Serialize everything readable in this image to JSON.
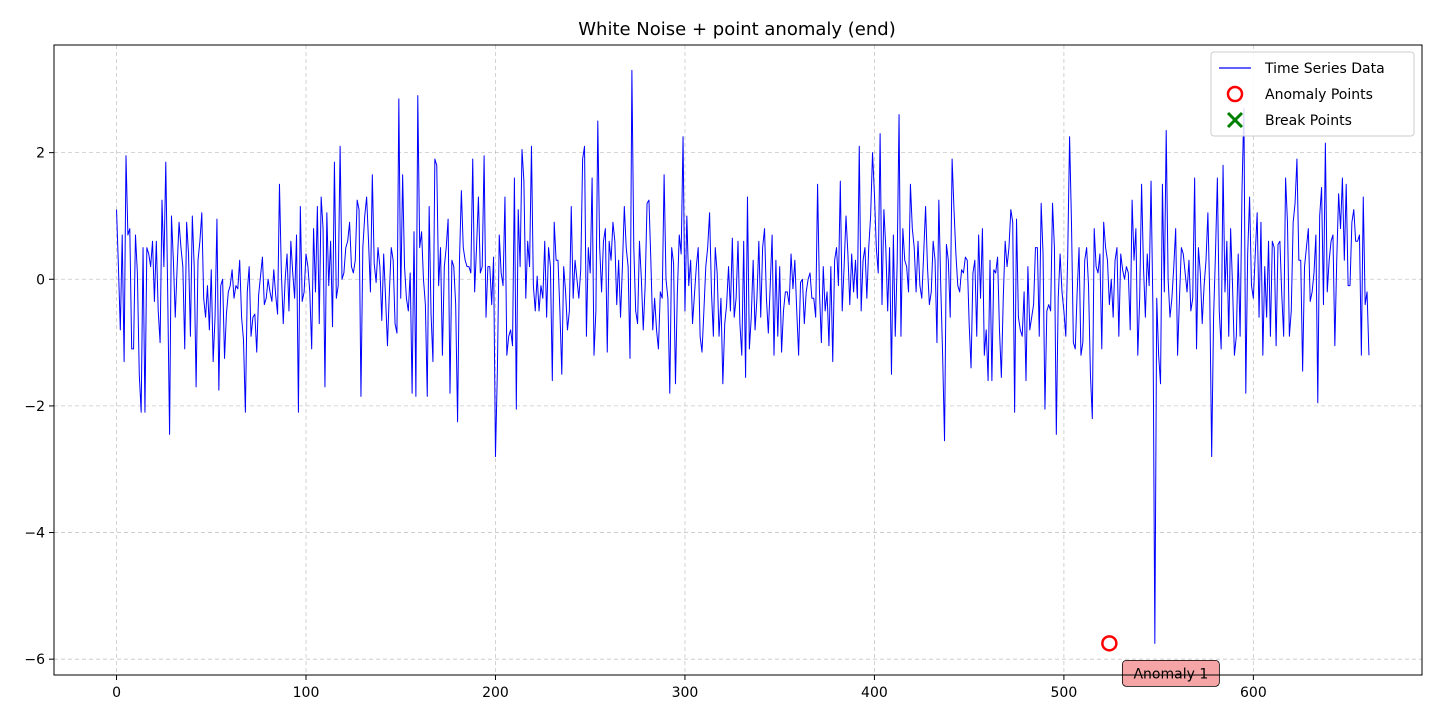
{
  "chart_data": {
    "type": "line",
    "title": "White Noise + point anomaly (end)",
    "xlabel": "",
    "ylabel": "",
    "xlim": [
      -33,
      689
    ],
    "ylim": [
      -6.25,
      3.7
    ],
    "xticks": [
      0,
      100,
      200,
      300,
      400,
      500,
      600
    ],
    "yticks": [
      -6,
      -4,
      -2,
      0,
      2
    ],
    "ytick_labels": [
      "−6",
      "−4",
      "−2",
      "0",
      "2"
    ],
    "grid": true,
    "legend": {
      "placement": "top-right",
      "entries": [
        {
          "label": "Time Series Data",
          "marker": "line",
          "color": "#0000ff"
        },
        {
          "label": "Anomaly Points",
          "marker": "circle",
          "color": "#ff0000"
        },
        {
          "label": "Break Points",
          "marker": "x",
          "color": "#008000"
        }
      ]
    },
    "series": [
      {
        "name": "Time Series Data",
        "color": "#0000ff",
        "x_start": 0,
        "x_step": 1,
        "values": [
          1.1,
          0.2,
          -0.8,
          0.7,
          -1.3,
          1.95,
          0.7,
          0.8,
          -1.1,
          -1.1,
          0.7,
          0.1,
          -1.5,
          -2.1,
          0.5,
          -2.1,
          0.5,
          0.4,
          0.2,
          0.6,
          -0.35,
          0.6,
          -0.5,
          -1.0,
          1.25,
          0.2,
          1.85,
          -0.2,
          -2.45,
          1.0,
          0.3,
          -0.6,
          0.2,
          0.9,
          0.5,
          0.2,
          -1.1,
          0.9,
          0.4,
          -0.9,
          1.0,
          0.2,
          -1.7,
          0.3,
          0.6,
          1.05,
          -0.3,
          -0.6,
          -0.1,
          -0.8,
          0.15,
          -1.3,
          -0.6,
          0.95,
          -1.75,
          -0.1,
          0.0,
          -1.25,
          -0.55,
          -0.2,
          -0.1,
          0.15,
          -0.3,
          -0.1,
          -0.15,
          0.3,
          -0.6,
          -0.95,
          -2.1,
          -0.2,
          0.2,
          -0.9,
          -0.6,
          -0.55,
          -1.15,
          -0.25,
          0.05,
          0.35,
          -0.4,
          -0.3,
          0.0,
          -0.2,
          -0.35,
          0.15,
          -0.25,
          -0.55,
          1.5,
          0.1,
          -0.7,
          0.0,
          0.4,
          -0.5,
          0.6,
          0.1,
          -0.3,
          0.7,
          -2.1,
          1.15,
          -0.35,
          -0.2,
          0.4,
          0.2,
          -0.2,
          -1.1,
          0.8,
          -0.2,
          1.15,
          -0.7,
          1.3,
          0.8,
          -1.7,
          1.05,
          -0.1,
          0.6,
          -0.75,
          1.85,
          -0.3,
          -0.1,
          2.1,
          0.0,
          0.1,
          0.5,
          0.6,
          0.9,
          0.2,
          0.1,
          0.3,
          1.25,
          1.1,
          -1.85,
          0.5,
          1.0,
          1.3,
          0.6,
          -0.2,
          1.65,
          0.25,
          -0.05,
          0.5,
          0.2,
          -0.65,
          0.4,
          -0.3,
          -1.05,
          -0.2,
          0.5,
          0.3,
          -0.7,
          -0.85,
          2.85,
          -0.3,
          1.65,
          0.2,
          -0.3,
          -0.5,
          0.1,
          -1.8,
          0.75,
          -1.85,
          2.9,
          0.5,
          0.75,
          0.0,
          -0.4,
          -1.85,
          1.15,
          -0.55,
          -1.3,
          1.9,
          1.8,
          -0.1,
          0.5,
          -1.2,
          0.2,
          0.5,
          0.95,
          -1.8,
          0.3,
          0.2,
          -0.4,
          -2.25,
          0.3,
          1.4,
          0.5,
          0.3,
          0.2,
          0.2,
          0.1,
          1.9,
          -0.2,
          0.5,
          1.3,
          0.1,
          0.2,
          1.95,
          -0.6,
          0.2,
          0.2,
          -0.4,
          0.35,
          -2.8,
          -1.45,
          0.7,
          0.1,
          -0.1,
          1.3,
          -1.2,
          -0.9,
          -0.8,
          -1.05,
          1.6,
          -2.05,
          1.1,
          0.2,
          2.05,
          1.55,
          -0.3,
          0.6,
          0.2,
          2.1,
          -0.1,
          -0.5,
          0.05,
          -0.5,
          -0.1,
          -0.3,
          0.6,
          -0.6,
          0.5,
          0.2,
          -1.6,
          0.9,
          0.3,
          0.3,
          -0.5,
          -1.5,
          0.2,
          -0.2,
          -0.8,
          -0.5,
          1.15,
          -0.3,
          0.3,
          0.0,
          -0.3,
          0.15,
          1.9,
          2.1,
          -0.9,
          0.5,
          0.1,
          1.6,
          -1.2,
          -0.5,
          2.5,
          0.5,
          -0.2,
          0.6,
          0.8,
          -1.15,
          0.6,
          0.3,
          0.9,
          0.6,
          -0.4,
          0.3,
          -0.6,
          0.2,
          1.15,
          0.5,
          0.2,
          -1.25,
          3.3,
          0.5,
          -0.5,
          -0.7,
          0.6,
          0.0,
          -0.8,
          -0.1,
          1.2,
          1.25,
          0.3,
          -0.8,
          -0.3,
          -0.8,
          -1.1,
          -0.2,
          -0.3,
          1.65,
          0.0,
          -0.3,
          -1.8,
          0.5,
          0.25,
          -1.65,
          -0.2,
          0.7,
          0.4,
          2.25,
          -0.5,
          1.0,
          -0.1,
          0.3,
          -0.7,
          -0.25,
          0.2,
          0.5,
          -0.9,
          -1.15,
          -0.5,
          0.2,
          0.5,
          1.05,
          -0.2,
          -0.9,
          0.5,
          0.1,
          -0.9,
          -0.3,
          -1.65,
          -0.7,
          -0.4,
          0.2,
          -0.5,
          0.65,
          -0.6,
          -0.3,
          0.6,
          -0.7,
          -1.2,
          0.6,
          -1.55,
          1.3,
          -1.1,
          -0.6,
          0.3,
          -0.8,
          -0.3,
          0.6,
          -0.6,
          0.5,
          0.8,
          -0.3,
          -0.85,
          -0.1,
          0.7,
          -1.2,
          0.3,
          -0.9,
          0.2,
          -1.15,
          -0.5,
          -0.2,
          -0.2,
          -0.4,
          0.4,
          -0.15,
          0.3,
          -0.5,
          -1.2,
          -0.05,
          0.0,
          -0.7,
          -0.2,
          0.0,
          0.1,
          -0.3,
          -0.3,
          -0.6,
          1.5,
          -0.2,
          -1.0,
          0.2,
          -0.5,
          -0.2,
          -1.05,
          0.2,
          -1.3,
          0.3,
          0.5,
          -0.1,
          1.55,
          -0.5,
          0.2,
          1.0,
          0.4,
          -0.4,
          0.4,
          -0.2,
          0.3,
          -0.3,
          2.1,
          -0.5,
          0.3,
          0.5,
          -0.3,
          0.5,
          1.0,
          2.0,
          1.35,
          0.5,
          0.1,
          2.3,
          -0.4,
          1.1,
          0.5,
          -0.5,
          0.5,
          -1.5,
          0.7,
          -0.9,
          0.25,
          2.6,
          -0.9,
          0.8,
          0.3,
          0.2,
          -0.2,
          1.5,
          0.8,
          0.5,
          -0.2,
          0.6,
          -0.1,
          -0.3,
          0.4,
          1.15,
          0.2,
          -0.4,
          -0.2,
          0.6,
          0.3,
          -1.0,
          1.25,
          -0.1,
          -1.2,
          -2.55,
          0.55,
          0.3,
          -0.6,
          1.9,
          1.1,
          0.4,
          -0.1,
          -0.2,
          0.15,
          0.1,
          0.35,
          0.3,
          -0.7,
          -1.4,
          0.1,
          0.3,
          -0.9,
          0.7,
          -0.3,
          0.8,
          -1.2,
          -0.8,
          -1.6,
          0.3,
          -1.6,
          0.15,
          0.1,
          0.35,
          -0.8,
          -1.55,
          -0.3,
          0.6,
          0.2,
          0.5,
          1.1,
          0.9,
          -2.1,
          0.95,
          -0.6,
          -0.8,
          -0.9,
          -0.2,
          -1.6,
          0.2,
          -0.8,
          -0.6,
          -0.4,
          0.5,
          0.5,
          -0.9,
          1.2,
          0.4,
          -2.05,
          -0.5,
          -0.4,
          -0.5,
          1.2,
          0.5,
          -2.45,
          -0.3,
          0.4,
          -0.2,
          -0.5,
          -0.9,
          0.35,
          2.25,
          0.9,
          -1.0,
          -1.1,
          -0.2,
          0.5,
          -1.2,
          -1.0,
          0.3,
          0.5,
          -0.1,
          -1.5,
          -2.2,
          0.8,
          0.2,
          0.1,
          0.4,
          -1.1,
          0.9,
          0.5,
          0.3,
          -0.4,
          0.0,
          -0.6,
          0.3,
          0.5,
          -0.9,
          0.4,
          0.15,
          0.0,
          0.2,
          0.1,
          -0.8,
          1.25,
          0.3,
          0.8,
          -1.2,
          -0.3,
          1.5,
          0.2,
          -0.6,
          0.4,
          -0.1,
          1.55,
          -0.5,
          -5.75,
          -0.3,
          -1.2,
          -1.65,
          1.5,
          -0.2,
          2.35,
          0.0,
          -0.6,
          -0.3,
          0.2,
          0.8,
          -1.2,
          -0.3,
          0.5,
          0.4,
          0.1,
          -0.2,
          0.3,
          -0.5,
          -0.3,
          1.6,
          -1.1,
          0.5,
          0.1,
          -0.7,
          -0.1,
          0.3,
          1.05,
          -0.3,
          -2.8,
          -0.6,
          0.4,
          1.6,
          -0.5,
          -1.1,
          1.8,
          -0.2,
          0.6,
          -0.9,
          0.8,
          -0.1,
          -1.2,
          -0.9,
          0.4,
          -0.9,
          1.4,
          2.7,
          -1.8,
          0.4,
          1.3,
          -0.1,
          -0.3,
          0.4,
          1.05,
          -0.6,
          0.9,
          -1.2,
          0.2,
          -0.6,
          0.6,
          -0.9,
          0.6,
          0.5,
          -1.05,
          0.55,
          0.6,
          -0.25,
          -0.9,
          1.6,
          0.9,
          -0.9,
          -0.5,
          0.9,
          1.2,
          1.9,
          0.3,
          0.3,
          -1.45,
          0.2,
          0.5,
          0.8,
          -0.35,
          -0.2,
          0.1,
          0.7,
          -1.95,
          1.0,
          1.45,
          -0.4,
          2.15,
          -0.2,
          0.3,
          0.6,
          0.7,
          -1.05,
          0.3,
          1.35,
          0.8,
          1.6,
          0.3,
          1.5,
          -0.1,
          -0.1,
          0.9,
          1.1,
          0.6,
          0.6,
          0.7,
          -1.2,
          1.3,
          -0.4,
          -0.2,
          -1.2
        ]
      }
    ],
    "anomaly_points": [
      {
        "x": 524,
        "y": -5.75,
        "color": "#ff0000"
      }
    ],
    "annotations": [
      {
        "text": "Anomaly 1",
        "x": 524,
        "y": -5.75,
        "background": "#f4a0a0"
      }
    ]
  }
}
